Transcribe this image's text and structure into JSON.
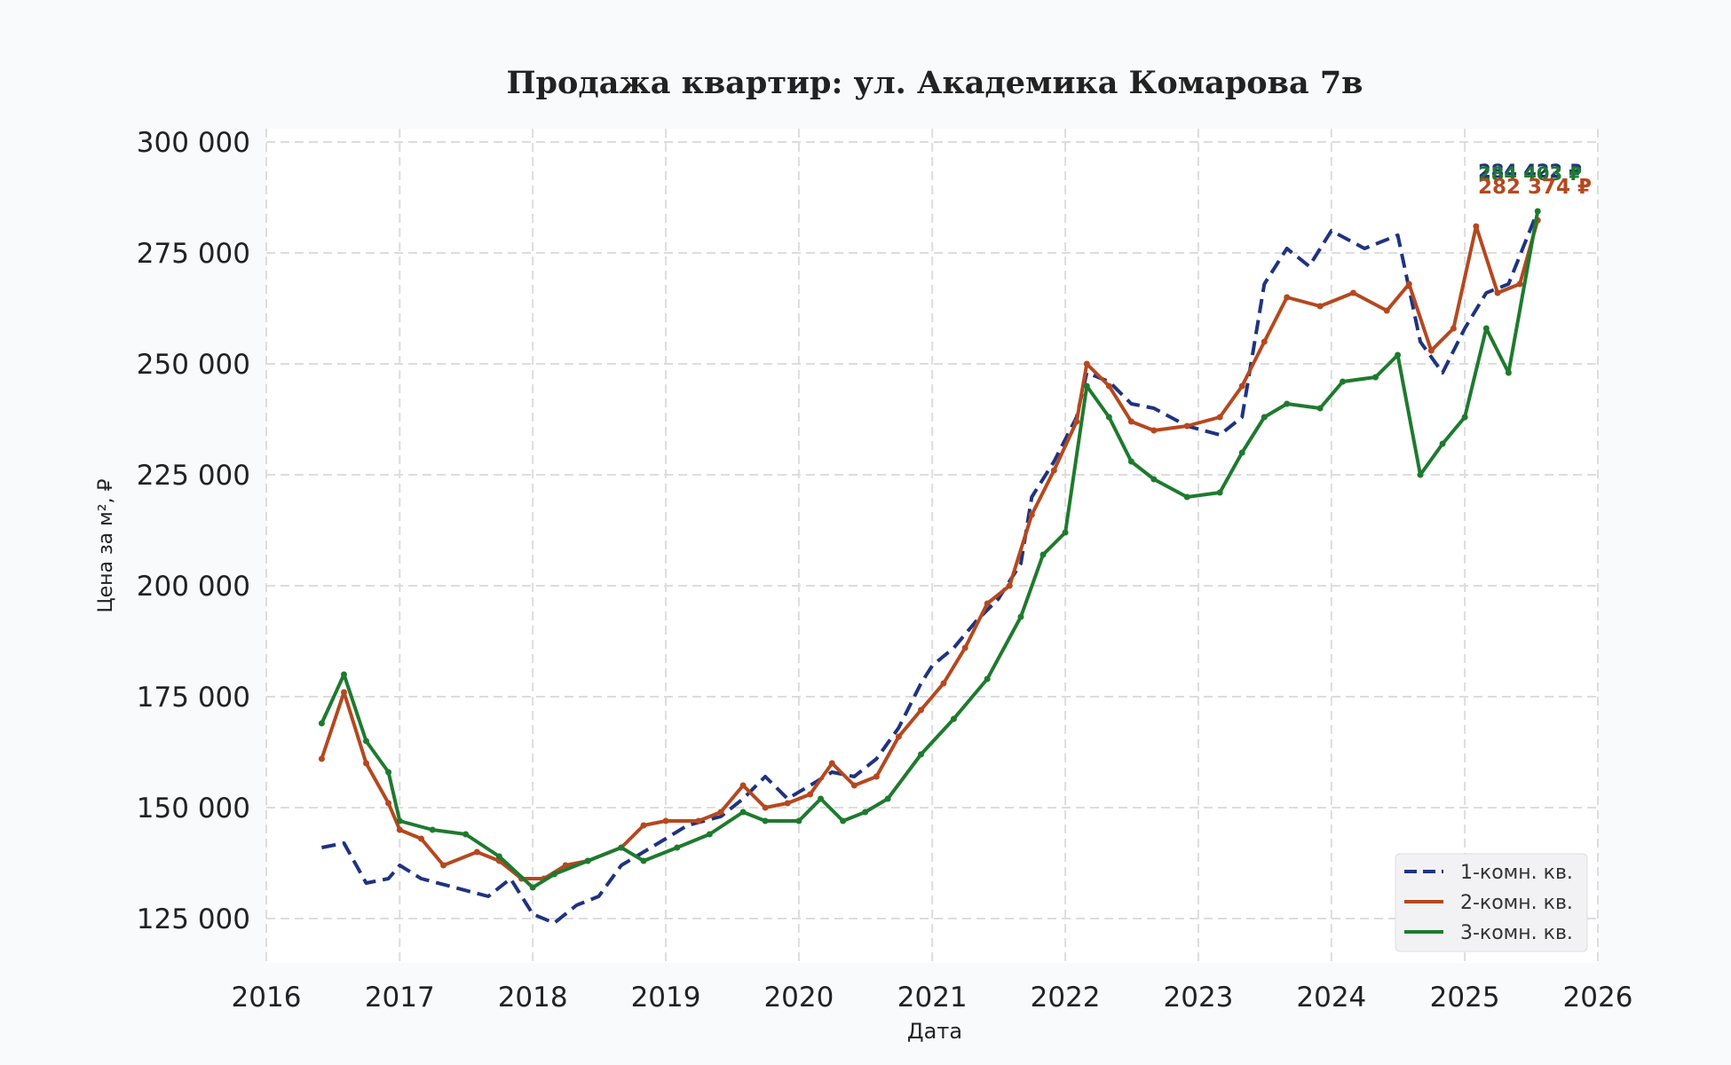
{
  "chart_data": {
    "type": "line",
    "title": "Продажа квартир: ул. Академика Комарова 7в",
    "xlabel": "Дата",
    "ylabel": "Цена за м², ₽",
    "x_ticks": [
      "2016",
      "2017",
      "2018",
      "2019",
      "2020",
      "2021",
      "2022",
      "2023",
      "2024",
      "2025",
      "2026"
    ],
    "y_ticks": [
      "125 000",
      "150 000",
      "175 000",
      "200 000",
      "225 000",
      "250 000",
      "275 000",
      "300 000"
    ],
    "xlim": [
      "2016-01-01",
      "2026-01-01"
    ],
    "ylim": [
      115000,
      303000
    ],
    "grid": true,
    "legend_position": "bottom-right",
    "series": [
      {
        "name": "1-комн. кв.",
        "color": "#1f3380",
        "style": "dashed",
        "end_label": "284 422 ₽",
        "points": [
          [
            "2016-06-01",
            141000
          ],
          [
            "2016-08-01",
            142000
          ],
          [
            "2016-10-01",
            133000
          ],
          [
            "2016-12-01",
            134000
          ],
          [
            "2017-01-01",
            137000
          ],
          [
            "2017-03-01",
            134000
          ],
          [
            "2017-06-01",
            132000
          ],
          [
            "2017-09-01",
            130000
          ],
          [
            "2017-11-01",
            134000
          ],
          [
            "2018-01-01",
            126000
          ],
          [
            "2018-03-01",
            124000
          ],
          [
            "2018-05-01",
            128000
          ],
          [
            "2018-07-01",
            130000
          ],
          [
            "2018-09-01",
            137000
          ],
          [
            "2018-11-01",
            140000
          ],
          [
            "2019-01-01",
            143000
          ],
          [
            "2019-03-01",
            146000
          ],
          [
            "2019-06-01",
            148000
          ],
          [
            "2019-08-01",
            152000
          ],
          [
            "2019-10-01",
            157000
          ],
          [
            "2019-12-01",
            152000
          ],
          [
            "2020-02-01",
            155000
          ],
          [
            "2020-04-01",
            158000
          ],
          [
            "2020-06-01",
            157000
          ],
          [
            "2020-08-01",
            161000
          ],
          [
            "2020-10-01",
            168000
          ],
          [
            "2020-12-01",
            178000
          ],
          [
            "2021-01-01",
            182000
          ],
          [
            "2021-03-01",
            186000
          ],
          [
            "2021-05-01",
            192000
          ],
          [
            "2021-07-01",
            197000
          ],
          [
            "2021-09-01",
            205000
          ],
          [
            "2021-10-01",
            220000
          ],
          [
            "2021-12-01",
            228000
          ],
          [
            "2022-02-01",
            238000
          ],
          [
            "2022-03-01",
            248000
          ],
          [
            "2022-05-01",
            246000
          ],
          [
            "2022-07-01",
            241000
          ],
          [
            "2022-09-01",
            240000
          ],
          [
            "2022-12-01",
            236000
          ],
          [
            "2023-03-01",
            234000
          ],
          [
            "2023-05-01",
            238000
          ],
          [
            "2023-07-01",
            268000
          ],
          [
            "2023-09-01",
            276000
          ],
          [
            "2023-11-01",
            272000
          ],
          [
            "2024-01-01",
            280000
          ],
          [
            "2024-04-01",
            276000
          ],
          [
            "2024-07-01",
            279000
          ],
          [
            "2024-09-01",
            255000
          ],
          [
            "2024-11-01",
            248000
          ],
          [
            "2025-01-01",
            258000
          ],
          [
            "2025-03-01",
            266000
          ],
          [
            "2025-05-01",
            268000
          ],
          [
            "2025-07-20",
            284422
          ]
        ]
      },
      {
        "name": "2-комн. кв.",
        "color": "#b5481f",
        "style": "solid",
        "end_label": "282 374 ₽",
        "points": [
          [
            "2016-06-01",
            161000
          ],
          [
            "2016-08-01",
            176000
          ],
          [
            "2016-10-01",
            160000
          ],
          [
            "2016-12-01",
            151000
          ],
          [
            "2017-01-01",
            145000
          ],
          [
            "2017-03-01",
            143000
          ],
          [
            "2017-05-01",
            137000
          ],
          [
            "2017-08-01",
            140000
          ],
          [
            "2017-10-01",
            138000
          ],
          [
            "2017-12-01",
            134000
          ],
          [
            "2018-02-01",
            134000
          ],
          [
            "2018-04-01",
            137000
          ],
          [
            "2018-06-01",
            138000
          ],
          [
            "2018-09-01",
            141000
          ],
          [
            "2018-11-01",
            146000
          ],
          [
            "2019-01-01",
            147000
          ],
          [
            "2019-04-01",
            147000
          ],
          [
            "2019-06-01",
            149000
          ],
          [
            "2019-08-01",
            155000
          ],
          [
            "2019-10-01",
            150000
          ],
          [
            "2019-12-01",
            151000
          ],
          [
            "2020-02-01",
            153000
          ],
          [
            "2020-04-01",
            160000
          ],
          [
            "2020-06-01",
            155000
          ],
          [
            "2020-08-01",
            157000
          ],
          [
            "2020-10-01",
            166000
          ],
          [
            "2020-12-01",
            172000
          ],
          [
            "2021-02-01",
            178000
          ],
          [
            "2021-04-01",
            186000
          ],
          [
            "2021-06-01",
            196000
          ],
          [
            "2021-08-01",
            200000
          ],
          [
            "2021-10-01",
            216000
          ],
          [
            "2021-12-01",
            226000
          ],
          [
            "2022-02-01",
            237000
          ],
          [
            "2022-03-01",
            250000
          ],
          [
            "2022-05-01",
            245000
          ],
          [
            "2022-07-01",
            237000
          ],
          [
            "2022-09-01",
            235000
          ],
          [
            "2022-12-01",
            236000
          ],
          [
            "2023-03-01",
            238000
          ],
          [
            "2023-05-01",
            245000
          ],
          [
            "2023-07-01",
            255000
          ],
          [
            "2023-09-01",
            265000
          ],
          [
            "2023-12-01",
            263000
          ],
          [
            "2024-03-01",
            266000
          ],
          [
            "2024-06-01",
            262000
          ],
          [
            "2024-08-01",
            268000
          ],
          [
            "2024-10-01",
            253000
          ],
          [
            "2024-12-01",
            258000
          ],
          [
            "2025-02-01",
            281000
          ],
          [
            "2025-04-01",
            266000
          ],
          [
            "2025-06-01",
            268000
          ],
          [
            "2025-07-20",
            282374
          ]
        ]
      },
      {
        "name": "3-комн. кв.",
        "color": "#1e7a2e",
        "style": "solid",
        "end_label": "284 403 ₽",
        "points": [
          [
            "2016-06-01",
            169000
          ],
          [
            "2016-08-01",
            180000
          ],
          [
            "2016-10-01",
            165000
          ],
          [
            "2016-12-01",
            158000
          ],
          [
            "2017-01-01",
            147000
          ],
          [
            "2017-04-01",
            145000
          ],
          [
            "2017-07-01",
            144000
          ],
          [
            "2017-10-01",
            139000
          ],
          [
            "2018-01-01",
            132000
          ],
          [
            "2018-03-01",
            135000
          ],
          [
            "2018-06-01",
            138000
          ],
          [
            "2018-09-01",
            141000
          ],
          [
            "2018-11-01",
            138000
          ],
          [
            "2019-02-01",
            141000
          ],
          [
            "2019-05-01",
            144000
          ],
          [
            "2019-08-01",
            149000
          ],
          [
            "2019-10-01",
            147000
          ],
          [
            "2020-01-01",
            147000
          ],
          [
            "2020-03-01",
            152000
          ],
          [
            "2020-05-01",
            147000
          ],
          [
            "2020-07-01",
            149000
          ],
          [
            "2020-09-01",
            152000
          ],
          [
            "2020-12-01",
            162000
          ],
          [
            "2021-03-01",
            170000
          ],
          [
            "2021-06-01",
            179000
          ],
          [
            "2021-09-01",
            193000
          ],
          [
            "2021-11-01",
            207000
          ],
          [
            "2022-01-01",
            212000
          ],
          [
            "2022-03-01",
            245000
          ],
          [
            "2022-05-01",
            238000
          ],
          [
            "2022-07-01",
            228000
          ],
          [
            "2022-09-01",
            224000
          ],
          [
            "2022-12-01",
            220000
          ],
          [
            "2023-03-01",
            221000
          ],
          [
            "2023-05-01",
            230000
          ],
          [
            "2023-07-01",
            238000
          ],
          [
            "2023-09-01",
            241000
          ],
          [
            "2023-12-01",
            240000
          ],
          [
            "2024-02-01",
            246000
          ],
          [
            "2024-05-01",
            247000
          ],
          [
            "2024-07-01",
            252000
          ],
          [
            "2024-09-01",
            225000
          ],
          [
            "2024-11-01",
            232000
          ],
          [
            "2025-01-01",
            238000
          ],
          [
            "2025-03-01",
            258000
          ],
          [
            "2025-05-01",
            248000
          ],
          [
            "2025-07-20",
            284403
          ]
        ]
      }
    ]
  }
}
